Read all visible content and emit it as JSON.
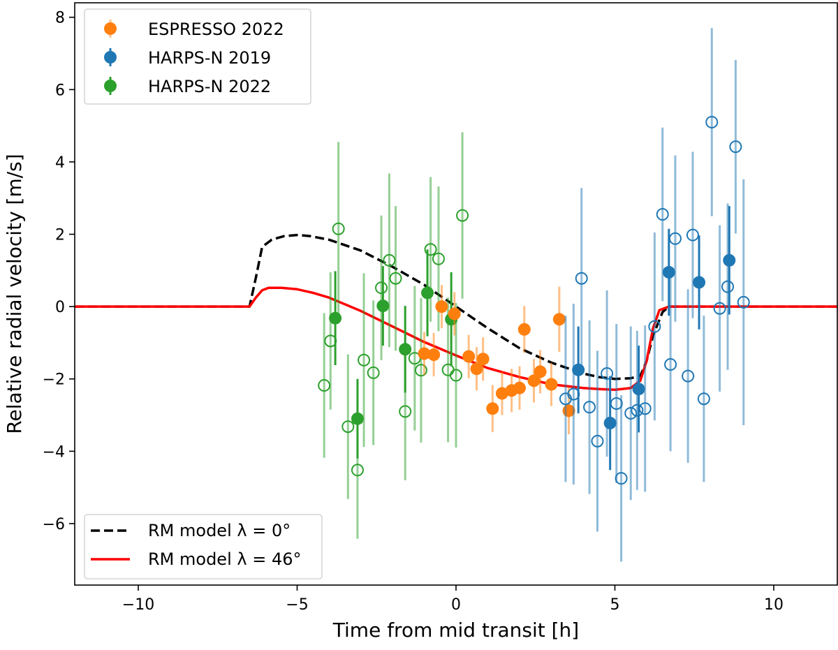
{
  "chart_data": {
    "type": "scatter",
    "title": "",
    "xlabel": "Time from mid transit [h]",
    "ylabel": "Relative radial velocity [m/s]",
    "xlim": [
      -12,
      12
    ],
    "ylim": [
      -7.7,
      8.4
    ],
    "xticks": [
      -10,
      -5,
      0,
      5,
      10
    ],
    "xtick_labels": [
      "−10",
      "−5",
      "0",
      "5",
      "10"
    ],
    "yticks": [
      -6,
      -4,
      -2,
      0,
      2,
      4,
      6,
      8
    ],
    "ytick_labels": [
      "−6",
      "−4",
      "−2",
      "0",
      "2",
      "4",
      "6",
      "8"
    ],
    "grid": false,
    "legend_markers": {
      "position": "top-left",
      "entries": [
        {
          "label": "ESPRESSO 2022",
          "color": "#ff7f0e"
        },
        {
          "label": "HARPS-N 2019",
          "color": "#1f77b4"
        },
        {
          "label": "HARPS-N 2022",
          "color": "#2ca02c"
        }
      ]
    },
    "legend_lines": {
      "position": "bottom-left",
      "entries": [
        {
          "label": "RM model λ = 0°",
          "color": "#000000",
          "style": "dashed"
        },
        {
          "label": "RM model λ = 46°",
          "color": "#ff0000",
          "style": "solid"
        }
      ]
    },
    "series": [
      {
        "name": "HARPS-N 2022 individual",
        "color": "#2ca02c",
        "marker": "open-circle",
        "points": [
          [
            -4.15,
            -2.18,
            2.0
          ],
          [
            -3.95,
            -0.95,
            1.9
          ],
          [
            -3.7,
            2.15,
            2.4
          ],
          [
            -3.4,
            -3.32,
            2.0
          ],
          [
            -3.1,
            -4.52,
            1.9
          ],
          [
            -2.9,
            -1.48,
            2.4
          ],
          [
            -2.6,
            -1.83,
            2.0
          ],
          [
            -2.35,
            0.52,
            2.0
          ],
          [
            -2.1,
            1.28,
            2.4
          ],
          [
            -1.9,
            0.78,
            2.0
          ],
          [
            -1.6,
            -2.9,
            1.9
          ],
          [
            -1.3,
            -1.43,
            2.0
          ],
          [
            -1.1,
            -1.76,
            2.0
          ],
          [
            -0.8,
            1.58,
            2.0
          ],
          [
            -0.55,
            1.32,
            2.0
          ],
          [
            -0.25,
            -1.75,
            2.0
          ],
          [
            0.0,
            -1.9,
            2.0
          ],
          [
            0.2,
            2.52,
            2.3
          ]
        ]
      },
      {
        "name": "HARPS-N 2022 binned",
        "color": "#2ca02c",
        "marker": "filled-circle",
        "points": [
          [
            -3.8,
            -0.32,
            1.3
          ],
          [
            -3.1,
            -3.1,
            1.1
          ],
          [
            -2.3,
            0.02,
            1.1
          ],
          [
            -1.6,
            -1.18,
            1.2
          ],
          [
            -0.9,
            0.38,
            1.2
          ],
          [
            -0.15,
            -0.35,
            1.3
          ]
        ]
      },
      {
        "name": "ESPRESSO 2022",
        "color": "#ff7f0e",
        "marker": "filled-circle",
        "points": [
          [
            -1.0,
            -1.3,
            0.6
          ],
          [
            -0.7,
            -1.33,
            0.6
          ],
          [
            -0.45,
            0.0,
            0.6
          ],
          [
            -0.05,
            -0.2,
            0.6
          ],
          [
            0.4,
            -1.38,
            0.6
          ],
          [
            0.65,
            -1.72,
            0.6
          ],
          [
            0.85,
            -1.45,
            0.6
          ],
          [
            1.15,
            -2.82,
            0.65
          ],
          [
            1.45,
            -2.4,
            0.6
          ],
          [
            1.75,
            -2.32,
            0.6
          ],
          [
            2.0,
            -2.25,
            0.6
          ],
          [
            2.15,
            -0.63,
            0.65
          ],
          [
            2.45,
            -2.05,
            0.6
          ],
          [
            2.65,
            -1.8,
            0.6
          ],
          [
            3.0,
            -2.15,
            0.6
          ],
          [
            3.25,
            -0.35,
            0.9
          ],
          [
            3.55,
            -2.88,
            0.65
          ]
        ]
      },
      {
        "name": "HARPS-N 2019 individual",
        "color": "#1f77b4",
        "marker": "open-circle",
        "points": [
          [
            3.45,
            -2.55,
            2.3
          ],
          [
            3.7,
            -2.42,
            2.5
          ],
          [
            3.95,
            0.78,
            2.5
          ],
          [
            4.2,
            -2.78,
            2.4
          ],
          [
            4.45,
            -3.72,
            2.5
          ],
          [
            4.75,
            -1.85,
            2.3
          ],
          [
            5.05,
            -2.68,
            2.2
          ],
          [
            5.2,
            -4.75,
            2.3
          ],
          [
            5.5,
            -2.95,
            2.4
          ],
          [
            5.7,
            -2.87,
            2.2
          ],
          [
            5.95,
            -2.82,
            2.3
          ],
          [
            6.25,
            -0.55,
            2.6
          ],
          [
            6.5,
            2.55,
            2.4
          ],
          [
            6.75,
            -1.6,
            2.4
          ],
          [
            6.9,
            1.88,
            2.3
          ],
          [
            7.3,
            -1.92,
            2.4
          ],
          [
            7.45,
            1.98,
            2.3
          ],
          [
            7.8,
            -2.55,
            2.3
          ],
          [
            8.05,
            5.1,
            2.6
          ],
          [
            8.3,
            -0.05,
            2.3
          ],
          [
            8.55,
            0.55,
            2.3
          ],
          [
            8.8,
            4.42,
            2.4
          ],
          [
            9.05,
            0.12,
            3.4
          ]
        ]
      },
      {
        "name": "HARPS-N 2019 binned",
        "color": "#1f77b4",
        "marker": "filled-circle",
        "points": [
          [
            3.85,
            -1.75,
            1.2
          ],
          [
            4.85,
            -3.22,
            1.3
          ],
          [
            5.75,
            -2.28,
            1.2
          ],
          [
            6.7,
            0.95,
            1.2
          ],
          [
            7.65,
            0.67,
            1.3
          ],
          [
            8.6,
            1.28,
            1.5
          ]
        ]
      }
    ],
    "models": [
      {
        "name": "RM model λ = 0°",
        "color": "#000000",
        "style": "dashed",
        "x": [
          -12,
          -6.5,
          -6.3,
          -6.1,
          -5.8,
          -5.4,
          -5.0,
          -4.6,
          -4.0,
          -3.0,
          -2.0,
          -1.0,
          0.0,
          1.0,
          2.0,
          3.0,
          4.0,
          4.5,
          5.0,
          5.5,
          5.8,
          6.0,
          6.2,
          6.5,
          6.7,
          12
        ],
        "y": [
          0,
          0,
          0.8,
          1.65,
          1.85,
          1.95,
          1.98,
          1.95,
          1.85,
          1.55,
          1.1,
          0.6,
          0.0,
          -0.6,
          -1.15,
          -1.55,
          -1.85,
          -1.95,
          -2.0,
          -1.98,
          -1.92,
          -1.5,
          -0.8,
          -0.15,
          0,
          0
        ]
      },
      {
        "name": "RM model λ = 46°",
        "color": "#ff0000",
        "style": "solid",
        "x": [
          -12,
          -6.5,
          -6.3,
          -6.1,
          -5.9,
          -5.5,
          -5.0,
          -4.5,
          -4.0,
          -3.0,
          -2.0,
          -1.0,
          0.0,
          1.0,
          2.0,
          3.0,
          4.0,
          4.5,
          5.0,
          5.5,
          5.8,
          6.0,
          6.2,
          6.4,
          6.7,
          12
        ],
        "y": [
          0,
          0,
          0.25,
          0.45,
          0.52,
          0.52,
          0.48,
          0.38,
          0.25,
          -0.12,
          -0.55,
          -0.98,
          -1.35,
          -1.7,
          -1.95,
          -2.15,
          -2.25,
          -2.28,
          -2.3,
          -2.25,
          -2.05,
          -1.5,
          -0.6,
          -0.1,
          0,
          0
        ]
      }
    ]
  }
}
